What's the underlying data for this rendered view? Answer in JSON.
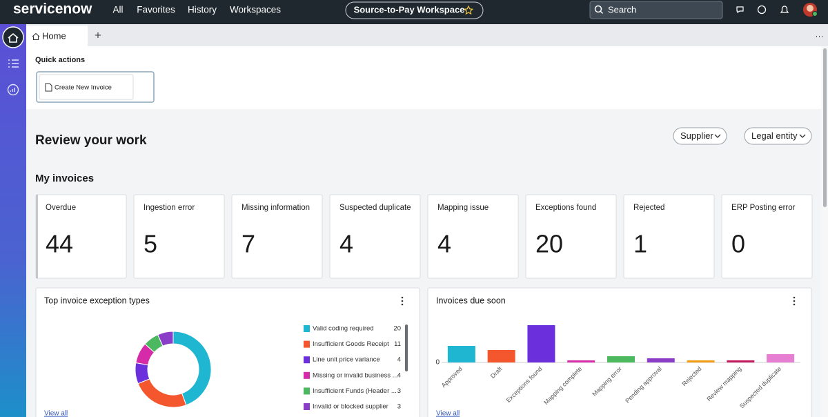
{
  "nav": {
    "logo": "servicenow",
    "links": [
      "All",
      "Favorites",
      "History",
      "Workspaces"
    ],
    "workspace": "Source-to-Pay Workspace",
    "search": "Search"
  },
  "tabs": {
    "home": "Home",
    "add": "+"
  },
  "quick_actions": {
    "title": "Quick actions",
    "button": "Create New Invoice"
  },
  "review": {
    "title": "Review your work",
    "filters": [
      "Supplier",
      "Legal entity"
    ]
  },
  "invoices": {
    "title": "My invoices",
    "cards": [
      {
        "label": "Overdue",
        "value": 44
      },
      {
        "label": "Ingestion error",
        "value": 5
      },
      {
        "label": "Missing information",
        "value": 7
      },
      {
        "label": "Suspected duplicate",
        "value": 4
      },
      {
        "label": "Mapping issue",
        "value": 4
      },
      {
        "label": "Exceptions found",
        "value": 20
      },
      {
        "label": "Rejected",
        "value": 1
      },
      {
        "label": "ERP Posting error",
        "value": 0
      }
    ]
  },
  "chart_data": [
    {
      "type": "pie",
      "donut": true,
      "title": "Top invoice exception types",
      "link": "View all",
      "categories": [
        "Valid coding required",
        "Insufficient Goods Receipt",
        "Line unit price variance",
        "Missing or invalid business ...",
        "Insufficient Funds (Header ...",
        "Invalid or blocked supplier"
      ],
      "values": [
        20,
        11,
        4,
        4,
        3,
        3
      ],
      "colors": [
        "#1fb6d1",
        "#f4572d",
        "#6b2fdb",
        "#d62ba8",
        "#4cb860",
        "#8a3ec8"
      ]
    },
    {
      "type": "bar",
      "title": "Invoices due soon",
      "link": "View all",
      "categories": [
        "Approved",
        "Draft",
        "Exceptions found",
        "Mapping complete",
        "Mapping error",
        "Pending approval",
        "Rejected",
        "Review mapping",
        "Suspected duplicate"
      ],
      "values": [
        8,
        6,
        18,
        1,
        3,
        2,
        1,
        1,
        4
      ],
      "colors": [
        "#1fb6d1",
        "#f4572d",
        "#6b2fdb",
        "#d62ba8",
        "#4cb860",
        "#8a3ec8",
        "#f39c12",
        "#c2185b",
        "#e67fd1"
      ],
      "ylim": [
        0,
        20
      ],
      "yticks": [
        0
      ]
    }
  ]
}
